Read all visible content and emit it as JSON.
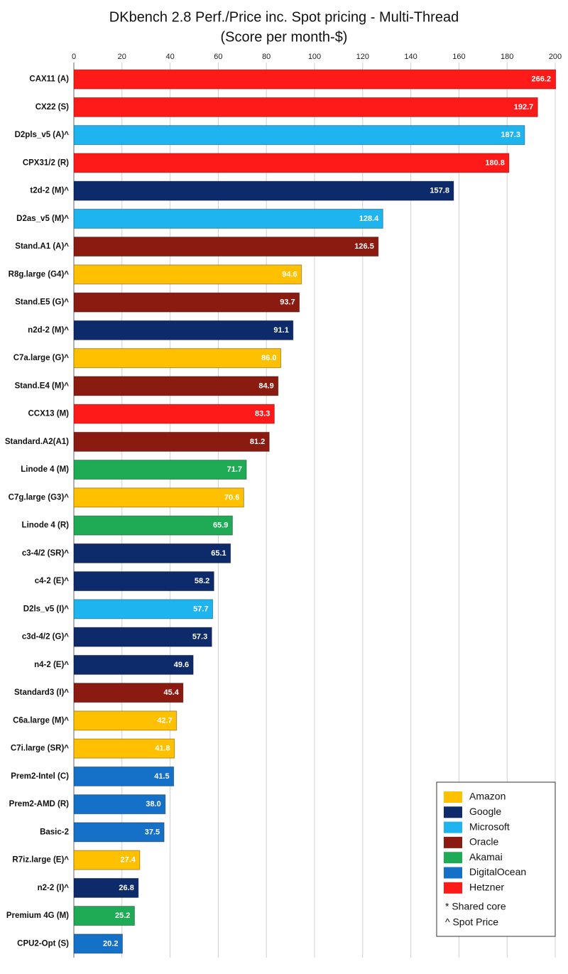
{
  "chart_data": {
    "type": "bar",
    "orientation": "horizontal",
    "title": "DKbench 2.8 Perf./Price inc. Spot pricing - Multi-Thread",
    "subtitle": "(Score per month-$)",
    "categories": [
      "CAX11 (A)",
      "CX22 (S)",
      "D2pls_v5 (A)^",
      "CPX31/2 (R)",
      "t2d-2 (M)^",
      "D2as_v5 (M)^",
      "Stand.A1 (A)^",
      "R8g.large (G4)^",
      "Stand.E5 (G)^",
      "n2d-2 (M)^",
      "C7a.large (G)^",
      "Stand.E4 (M)^",
      "CCX13 (M)",
      "Standard.A2(A1)",
      "Linode 4 (M)",
      "C7g.large (G3)^",
      "Linode 4 (R)",
      "c3-4/2 (SR)^",
      "c4-2 (E)^",
      "D2ls_v5 (I)^",
      "c3d-4/2 (G)^",
      "n4-2 (E)^",
      "Standard3 (I)^",
      "C6a.large (M)^",
      "C7i.large (SR)^",
      "Prem2-Intel (C)",
      "Prem2-AMD (R)",
      "Basic-2",
      "R7iz.large (E)^",
      "n2-2 (I)^",
      "Premium 4G (M)",
      "CPU2-Opt (S)"
    ],
    "series": [
      {
        "name": "Amazon",
        "color": "#FFC000",
        "values": [
          null,
          null,
          null,
          null,
          null,
          null,
          null,
          94.6,
          null,
          null,
          86,
          null,
          null,
          null,
          null,
          70.6,
          null,
          null,
          null,
          null,
          null,
          null,
          null,
          42.7,
          41.8,
          null,
          null,
          null,
          27.4,
          null,
          null,
          null
        ],
        "value_labels": [
          null,
          null,
          null,
          null,
          null,
          null,
          null,
          "94.6",
          null,
          null,
          "86.0",
          null,
          null,
          null,
          null,
          "70.6",
          null,
          null,
          null,
          null,
          null,
          null,
          null,
          "42.7",
          "41.8",
          null,
          null,
          null,
          "27.4",
          null,
          null,
          null
        ]
      },
      {
        "name": "Google",
        "color": "#0D2A6B",
        "values": [
          null,
          null,
          null,
          null,
          157.8,
          null,
          null,
          null,
          null,
          91.1,
          null,
          null,
          null,
          null,
          null,
          null,
          null,
          65.1,
          58.2,
          null,
          57.3,
          49.6,
          null,
          null,
          null,
          null,
          null,
          null,
          null,
          26.8,
          null,
          null
        ],
        "value_labels": [
          null,
          null,
          null,
          null,
          "157.8",
          null,
          null,
          null,
          null,
          "91.1",
          null,
          null,
          null,
          null,
          null,
          null,
          null,
          "65.1",
          "58.2",
          null,
          "57.3",
          "49.6",
          null,
          null,
          null,
          null,
          null,
          null,
          null,
          "26.8",
          null,
          null
        ]
      },
      {
        "name": "Microsoft",
        "color": "#1EB4F0",
        "values": [
          null,
          null,
          187.3,
          null,
          null,
          128.4,
          null,
          null,
          null,
          null,
          null,
          null,
          null,
          null,
          null,
          null,
          null,
          null,
          null,
          57.7,
          null,
          null,
          null,
          null,
          null,
          null,
          null,
          null,
          null,
          null,
          null,
          null
        ],
        "value_labels": [
          null,
          null,
          "187.3",
          null,
          null,
          "128.4",
          null,
          null,
          null,
          null,
          null,
          null,
          null,
          null,
          null,
          null,
          null,
          null,
          null,
          "57.7",
          null,
          null,
          null,
          null,
          null,
          null,
          null,
          null,
          null,
          null,
          null,
          null
        ]
      },
      {
        "name": "Oracle",
        "color": "#8B1A10",
        "values": [
          null,
          null,
          null,
          null,
          null,
          null,
          126.5,
          null,
          93.7,
          null,
          null,
          84.9,
          null,
          81.2,
          null,
          null,
          null,
          null,
          null,
          null,
          null,
          null,
          45.4,
          null,
          null,
          null,
          null,
          null,
          null,
          null,
          null,
          null
        ],
        "value_labels": [
          null,
          null,
          null,
          null,
          null,
          null,
          "126.5",
          null,
          "93.7",
          null,
          null,
          "84.9",
          null,
          "81.2",
          null,
          null,
          null,
          null,
          null,
          null,
          null,
          null,
          "45.4",
          null,
          null,
          null,
          null,
          null,
          null,
          null,
          null,
          null
        ]
      },
      {
        "name": "Akamai",
        "color": "#1FAA55",
        "values": [
          null,
          null,
          null,
          null,
          null,
          null,
          null,
          null,
          null,
          null,
          null,
          null,
          null,
          null,
          71.7,
          null,
          65.9,
          null,
          null,
          null,
          null,
          null,
          null,
          null,
          null,
          null,
          null,
          null,
          null,
          null,
          25.2,
          null
        ],
        "value_labels": [
          null,
          null,
          null,
          null,
          null,
          null,
          null,
          null,
          null,
          null,
          null,
          null,
          null,
          null,
          "71.7",
          null,
          "65.9",
          null,
          null,
          null,
          null,
          null,
          null,
          null,
          null,
          null,
          null,
          null,
          null,
          null,
          "25.2",
          null
        ]
      },
      {
        "name": "DigitalOcean",
        "color": "#1570C8",
        "values": [
          null,
          null,
          null,
          null,
          null,
          null,
          null,
          null,
          null,
          null,
          null,
          null,
          null,
          null,
          null,
          null,
          null,
          null,
          null,
          null,
          null,
          null,
          null,
          null,
          null,
          41.5,
          38,
          37.5,
          null,
          null,
          null,
          20.2
        ],
        "value_labels": [
          null,
          null,
          null,
          null,
          null,
          null,
          null,
          null,
          null,
          null,
          null,
          null,
          null,
          null,
          null,
          null,
          null,
          null,
          null,
          null,
          null,
          null,
          null,
          null,
          null,
          "41.5",
          "38.0",
          "37.5",
          null,
          null,
          null,
          "20.2"
        ]
      },
      {
        "name": "Hetzner",
        "color": "#FF1A1A",
        "values": [
          266.2,
          192.7,
          null,
          180.8,
          null,
          null,
          null,
          null,
          null,
          null,
          null,
          null,
          83.3,
          null,
          null,
          null,
          null,
          null,
          null,
          null,
          null,
          null,
          null,
          null,
          null,
          null,
          null,
          null,
          null,
          null,
          null,
          null
        ],
        "value_labels": [
          "266.2",
          "192.7",
          null,
          "180.8",
          null,
          null,
          null,
          null,
          null,
          null,
          null,
          null,
          "83.3",
          null,
          null,
          null,
          null,
          null,
          null,
          null,
          null,
          null,
          null,
          null,
          null,
          null,
          null,
          null,
          null,
          null,
          null,
          null
        ]
      }
    ],
    "xlim": [
      0,
      200
    ],
    "xticks": [
      0,
      20,
      40,
      60,
      80,
      100,
      120,
      140,
      160,
      180,
      200
    ],
    "grid": true,
    "legend": "lower right",
    "notes": [
      "* Shared core",
      "^ Spot Price"
    ]
  }
}
